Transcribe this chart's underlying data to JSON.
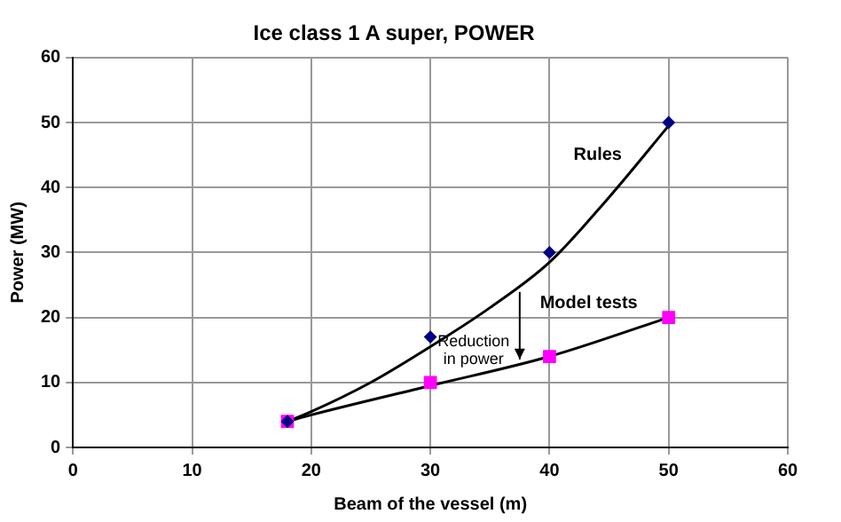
{
  "chart_data": {
    "type": "scatter",
    "title": "Ice class 1 A super, POWER",
    "xlabel": "Beam of the vessel (m)",
    "ylabel": "Power (MW)",
    "xlim": [
      0,
      60
    ],
    "xticks": [
      0,
      10,
      20,
      30,
      40,
      50,
      60
    ],
    "ylim": [
      0,
      60
    ],
    "yticks": [
      0,
      10,
      20,
      30,
      40,
      50,
      60
    ],
    "grid": true,
    "legend": false,
    "series": [
      {
        "name": "Rules",
        "type": "scatter",
        "marker": "diamond",
        "color": "#000080",
        "x": [
          18,
          30,
          40,
          50
        ],
        "values": [
          4,
          17,
          30,
          50
        ]
      },
      {
        "name": "Model tests",
        "type": "scatter",
        "marker": "square",
        "color": "#ff00ff",
        "x": [
          18,
          30,
          40,
          50
        ],
        "values": [
          4,
          10,
          14,
          20
        ]
      },
      {
        "type": "line",
        "marker": "none",
        "color": "#000000",
        "x": [
          18,
          20,
          25,
          30,
          35,
          40,
          45,
          50
        ],
        "values": [
          4,
          5.5,
          10,
          15.5,
          21.5,
          28.5,
          38.5,
          49.5
        ]
      },
      {
        "type": "line",
        "marker": "none",
        "color": "#000000",
        "x": [
          18,
          20,
          30,
          40,
          50
        ],
        "values": [
          4,
          5,
          9.5,
          14,
          20
        ]
      }
    ],
    "annotations": [
      {
        "text": "Reduction in power",
        "x": 37.5,
        "y": 13
      }
    ]
  }
}
